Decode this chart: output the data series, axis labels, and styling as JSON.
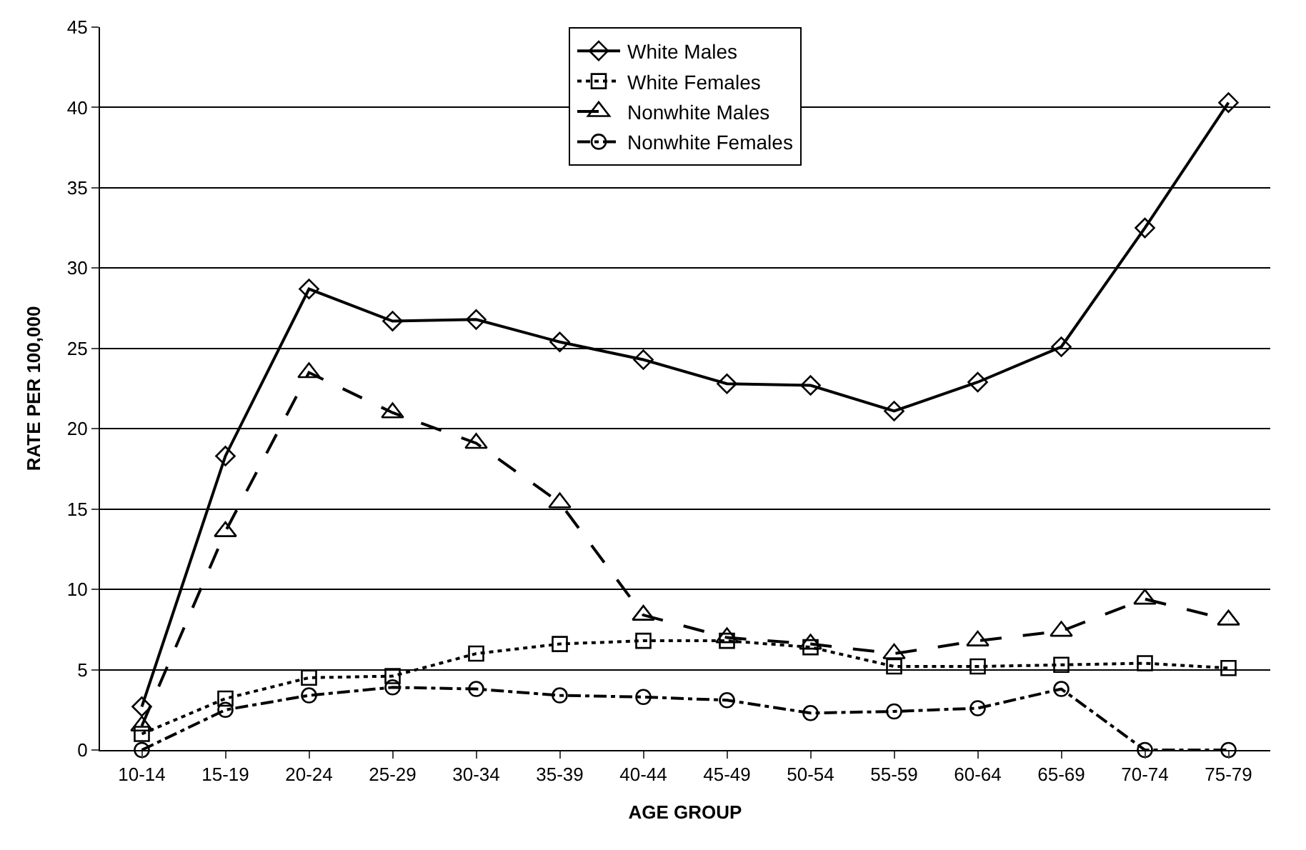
{
  "chart_data": {
    "type": "line",
    "xlabel": "AGE GROUP",
    "ylabel": "RATE PER 100,000",
    "categories": [
      "10-14",
      "15-19",
      "20-24",
      "25-29",
      "30-34",
      "35-39",
      "40-44",
      "45-49",
      "50-54",
      "55-59",
      "60-64",
      "65-69",
      "70-74",
      "75-79"
    ],
    "series": [
      {
        "name": "White Males",
        "color": "#000000",
        "marker": "diamond",
        "line_style": "solid",
        "values": [
          2.7,
          18.3,
          28.7,
          26.7,
          26.8,
          25.4,
          24.3,
          22.8,
          22.7,
          21.1,
          22.9,
          25.1,
          32.5,
          40.3
        ]
      },
      {
        "name": "White Females",
        "color": "#000000",
        "marker": "square",
        "line_style": "dotted",
        "values": [
          1.0,
          3.2,
          4.5,
          4.6,
          6.0,
          6.6,
          6.8,
          6.8,
          6.4,
          5.2,
          5.2,
          5.3,
          5.4,
          5.1
        ]
      },
      {
        "name": "Nonwhite Males",
        "color": "#000000",
        "marker": "triangle",
        "line_style": "dashed",
        "values": [
          1.5,
          13.6,
          23.5,
          21.0,
          19.1,
          15.4,
          8.4,
          7.0,
          6.6,
          6.0,
          6.8,
          7.4,
          9.4,
          8.1
        ]
      },
      {
        "name": "Nonwhite Females",
        "color": "#000000",
        "marker": "circle",
        "line_style": "dashdot",
        "values": [
          0,
          2.5,
          3.4,
          3.9,
          3.8,
          3.4,
          3.3,
          3.1,
          2.3,
          2.4,
          2.6,
          3.8,
          0,
          0
        ]
      }
    ],
    "ylim": [
      0,
      45
    ],
    "yticks": [
      0,
      5,
      10,
      15,
      20,
      25,
      30,
      35,
      40,
      45
    ],
    "grid": "y",
    "legend": "top"
  }
}
